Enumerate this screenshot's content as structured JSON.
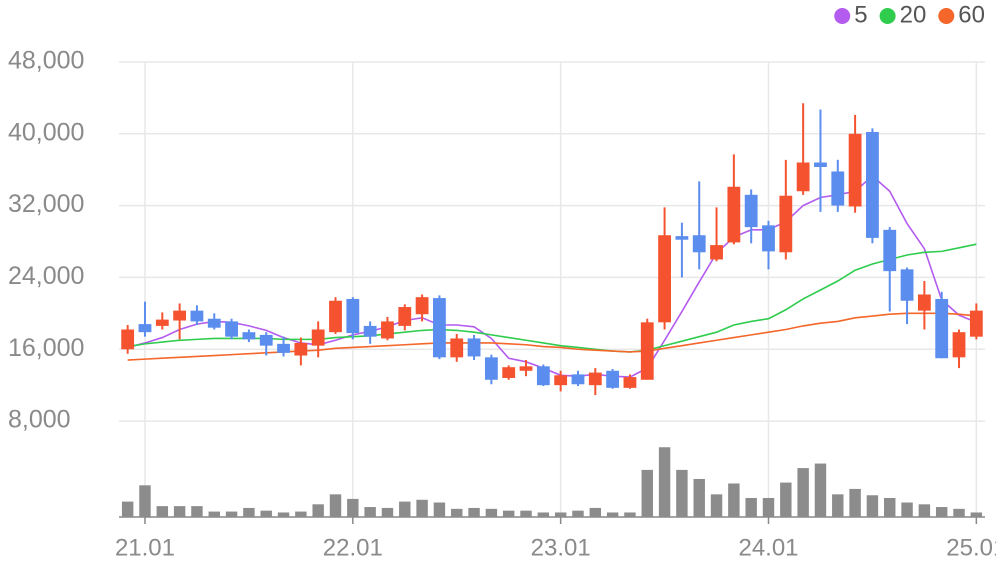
{
  "chart_data": {
    "type": "candlestick",
    "categories": [
      null,
      "21.01",
      null,
      null,
      null,
      null,
      null,
      null,
      null,
      null,
      null,
      null,
      null,
      "22.01",
      null,
      null,
      null,
      null,
      null,
      null,
      null,
      null,
      null,
      null,
      null,
      "23.01",
      null,
      null,
      null,
      null,
      null,
      null,
      null,
      null,
      null,
      null,
      null,
      "24.01",
      null,
      null,
      null,
      null,
      null,
      null,
      null,
      null,
      null,
      null,
      null,
      "25.01"
    ],
    "open": [
      16000,
      18800,
      18600,
      19200,
      20300,
      19400,
      19100,
      17900,
      17600,
      16600,
      15300,
      16400,
      17900,
      21600,
      18600,
      17200,
      18600,
      19900,
      21700,
      15100,
      17200,
      15100,
      12800,
      13600,
      14100,
      12000,
      13200,
      12000,
      13600,
      11700,
      12600,
      19000,
      28600,
      28700,
      26000,
      27900,
      33200,
      29800,
      26800,
      33600,
      36800,
      35800,
      31900,
      40200,
      29300,
      24900,
      20300,
      21600,
      15100,
      17400
    ],
    "high": [
      18700,
      21300,
      20100,
      21100,
      20900,
      20000,
      19400,
      18200,
      17900,
      17400,
      17300,
      19100,
      21800,
      21800,
      19100,
      19600,
      21000,
      22100,
      22000,
      17700,
      17600,
      15400,
      14200,
      14800,
      14300,
      13600,
      13600,
      13900,
      13800,
      13200,
      19400,
      31800,
      30100,
      34700,
      31800,
      37700,
      33800,
      30300,
      37100,
      43400,
      42700,
      37100,
      42100,
      40600,
      29600,
      25100,
      23600,
      22400,
      18200,
      21100
    ],
    "low": [
      15500,
      17400,
      18200,
      17100,
      18700,
      18200,
      17100,
      16800,
      15300,
      15200,
      14200,
      15100,
      17700,
      17100,
      16600,
      17000,
      18100,
      19100,
      14900,
      14600,
      14800,
      12100,
      12600,
      13000,
      11900,
      11300,
      11900,
      10900,
      11600,
      11600,
      12600,
      18200,
      24000,
      24900,
      25800,
      27700,
      27800,
      24900,
      26000,
      33200,
      31300,
      31300,
      31200,
      27800,
      20200,
      18800,
      18200,
      15000,
      13900,
      17100
    ],
    "close": [
      18200,
      17900,
      19300,
      20300,
      19100,
      18400,
      17400,
      17100,
      16400,
      15600,
      16700,
      18200,
      21400,
      17800,
      17400,
      19100,
      20700,
      21800,
      15100,
      17200,
      15200,
      12600,
      14000,
      14100,
      12000,
      13100,
      12100,
      13400,
      11700,
      12900,
      19000,
      28700,
      28200,
      26800,
      27600,
      34100,
      29600,
      26900,
      33100,
      36800,
      36300,
      32000,
      40000,
      28400,
      24700,
      21400,
      22100,
      15000,
      17900,
      20300
    ],
    "up_color": "#f5532f",
    "down_color": "#5b8def",
    "volume": {
      "color": "#8c8c8c",
      "lim": [
        0,
        85
      ],
      "values": [
        17,
        35,
        12,
        12,
        12,
        6,
        6,
        10,
        7,
        5,
        6,
        14,
        25,
        20,
        11,
        10,
        17,
        19,
        16,
        9,
        10,
        9,
        7,
        7,
        5,
        5,
        7,
        10,
        5,
        5,
        52,
        77,
        52,
        42,
        25,
        37,
        21,
        21,
        38,
        54,
        59,
        25,
        31,
        24,
        21,
        16,
        14,
        11,
        9,
        5
      ]
    },
    "series": [
      {
        "name": "5",
        "color": "#b45cf0",
        "values": [
          16200,
          16700,
          17300,
          18200,
          18800,
          19100,
          19000,
          18600,
          18100,
          17300,
          16700,
          16500,
          17000,
          17600,
          18000,
          18500,
          19200,
          19500,
          18700,
          18700,
          18500,
          17200,
          15000,
          14600,
          13900,
          13100,
          13000,
          13200,
          13000,
          12900,
          13900,
          17000,
          20200,
          23500,
          26700,
          28500,
          29300,
          29300,
          30200,
          32000,
          32900,
          33200,
          33600,
          35300,
          33600,
          30000,
          27200,
          21500,
          19800,
          19000
        ]
      },
      {
        "name": "20",
        "color": "#2fcc4e",
        "values": [
          16300,
          16600,
          16800,
          17000,
          17100,
          17200,
          17200,
          17200,
          17200,
          17100,
          17100,
          17100,
          17300,
          17400,
          17500,
          17700,
          17900,
          18100,
          18200,
          18100,
          17900,
          17600,
          17300,
          17000,
          16700,
          16400,
          16200,
          16000,
          15800,
          15700,
          15900,
          16400,
          16900,
          17400,
          17900,
          18700,
          19100,
          19400,
          20400,
          21600,
          22600,
          23600,
          24800,
          25500,
          26000,
          26500,
          26800,
          26900,
          27300,
          27700
        ]
      },
      {
        "name": "60",
        "color": "#f5662a",
        "values": [
          14800,
          14900,
          15000,
          15100,
          15200,
          15300,
          15400,
          15500,
          15600,
          15700,
          15800,
          15900,
          16100,
          16200,
          16300,
          16400,
          16500,
          16600,
          16700,
          16700,
          16700,
          16700,
          16600,
          16500,
          16300,
          16200,
          16000,
          15900,
          15800,
          15700,
          15800,
          16100,
          16400,
          16700,
          17000,
          17300,
          17600,
          17900,
          18200,
          18600,
          18900,
          19100,
          19500,
          19700,
          19900,
          20000,
          20000,
          20000,
          19900,
          19700
        ]
      }
    ],
    "ylim": [
      5000,
      50000
    ],
    "yticks": [
      {
        "value": 8000,
        "label": "8,000"
      },
      {
        "value": 16000,
        "label": "16,000"
      },
      {
        "value": 24000,
        "label": "24,000"
      },
      {
        "value": 32000,
        "label": "32,000"
      },
      {
        "value": 40000,
        "label": "40,000"
      },
      {
        "value": 48000,
        "label": "48,000"
      }
    ],
    "grid": true
  }
}
